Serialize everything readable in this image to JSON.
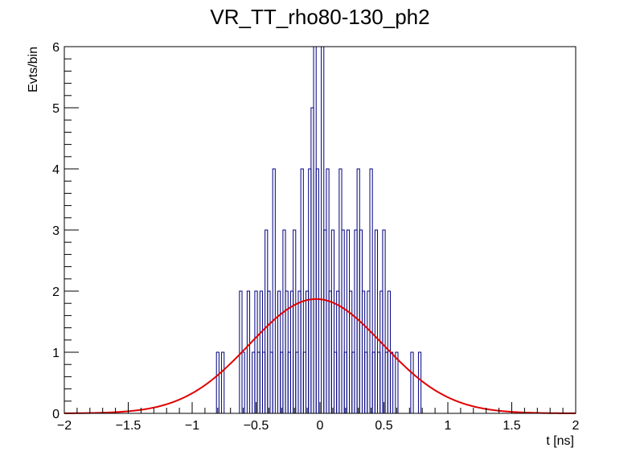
{
  "chart_data": {
    "type": "histogram",
    "title": "VR_TT_rho80-130_ph2",
    "xlabel": "t [ns]",
    "ylabel": "Evts/bin",
    "xlim": [
      -2,
      2
    ],
    "ylim": [
      0,
      6
    ],
    "x_ticks": [
      -2,
      -1.5,
      -1,
      -0.5,
      0,
      0.5,
      1,
      1.5,
      2
    ],
    "x_tick_labels": [
      "−2",
      "−1.5",
      "−1",
      "−0.5",
      "0",
      "0.5",
      "1",
      "1.5",
      "2"
    ],
    "y_ticks": [
      0,
      1,
      2,
      3,
      4,
      5,
      6
    ],
    "y_tick_labels": [
      "0",
      "1",
      "2",
      "3",
      "4",
      "5",
      "6"
    ],
    "grid": false,
    "histogram": {
      "name": "data",
      "color": "#000080",
      "bin_width": 0.02,
      "bins": [
        {
          "x": -0.8,
          "count": 1
        },
        {
          "x": -0.78,
          "count": 0
        },
        {
          "x": -0.76,
          "count": 1
        },
        {
          "x": -0.62,
          "count": 2
        },
        {
          "x": -0.6,
          "count": 1
        },
        {
          "x": -0.58,
          "count": 0
        },
        {
          "x": -0.56,
          "count": 2
        },
        {
          "x": -0.54,
          "count": 0
        },
        {
          "x": -0.52,
          "count": 1
        },
        {
          "x": -0.5,
          "count": 2
        },
        {
          "x": -0.48,
          "count": 1
        },
        {
          "x": -0.46,
          "count": 2
        },
        {
          "x": -0.44,
          "count": 1
        },
        {
          "x": -0.42,
          "count": 3
        },
        {
          "x": -0.4,
          "count": 2
        },
        {
          "x": -0.38,
          "count": 1
        },
        {
          "x": -0.36,
          "count": 4
        },
        {
          "x": -0.34,
          "count": 0
        },
        {
          "x": -0.32,
          "count": 2
        },
        {
          "x": -0.3,
          "count": 1
        },
        {
          "x": -0.28,
          "count": 3
        },
        {
          "x": -0.26,
          "count": 2
        },
        {
          "x": -0.24,
          "count": 1
        },
        {
          "x": -0.22,
          "count": 2
        },
        {
          "x": -0.2,
          "count": 3
        },
        {
          "x": -0.18,
          "count": 1
        },
        {
          "x": -0.16,
          "count": 2
        },
        {
          "x": -0.14,
          "count": 4
        },
        {
          "x": -0.12,
          "count": 1
        },
        {
          "x": -0.1,
          "count": 2
        },
        {
          "x": -0.08,
          "count": 4
        },
        {
          "x": -0.06,
          "count": 5
        },
        {
          "x": -0.04,
          "count": 6
        },
        {
          "x": -0.02,
          "count": 4
        },
        {
          "x": 0.0,
          "count": 0
        },
        {
          "x": 0.02,
          "count": 6
        },
        {
          "x": 0.04,
          "count": 3
        },
        {
          "x": 0.06,
          "count": 4
        },
        {
          "x": 0.08,
          "count": 2
        },
        {
          "x": 0.1,
          "count": 3
        },
        {
          "x": 0.12,
          "count": 1
        },
        {
          "x": 0.14,
          "count": 2
        },
        {
          "x": 0.16,
          "count": 4
        },
        {
          "x": 0.18,
          "count": 3
        },
        {
          "x": 0.2,
          "count": 1
        },
        {
          "x": 0.22,
          "count": 3
        },
        {
          "x": 0.24,
          "count": 2
        },
        {
          "x": 0.26,
          "count": 1
        },
        {
          "x": 0.28,
          "count": 3
        },
        {
          "x": 0.3,
          "count": 4
        },
        {
          "x": 0.32,
          "count": 3
        },
        {
          "x": 0.34,
          "count": 2
        },
        {
          "x": 0.36,
          "count": 1
        },
        {
          "x": 0.38,
          "count": 2
        },
        {
          "x": 0.4,
          "count": 4
        },
        {
          "x": 0.42,
          "count": 1
        },
        {
          "x": 0.44,
          "count": 3
        },
        {
          "x": 0.46,
          "count": 1
        },
        {
          "x": 0.48,
          "count": 2
        },
        {
          "x": 0.5,
          "count": 3
        },
        {
          "x": 0.52,
          "count": 1
        },
        {
          "x": 0.54,
          "count": 2
        },
        {
          "x": 0.56,
          "count": 1
        },
        {
          "x": 0.58,
          "count": 0
        },
        {
          "x": 0.6,
          "count": 1
        },
        {
          "x": 0.62,
          "count": 0
        },
        {
          "x": 0.72,
          "count": 1
        },
        {
          "x": 0.74,
          "count": 0
        },
        {
          "x": 0.78,
          "count": 1
        },
        {
          "x": 0.8,
          "count": 0
        }
      ]
    },
    "fit": {
      "name": "gaussian fit",
      "type": "gaussian",
      "color": "#e00000",
      "amplitude": 1.87,
      "mean": -0.03,
      "sigma": 0.52
    }
  }
}
